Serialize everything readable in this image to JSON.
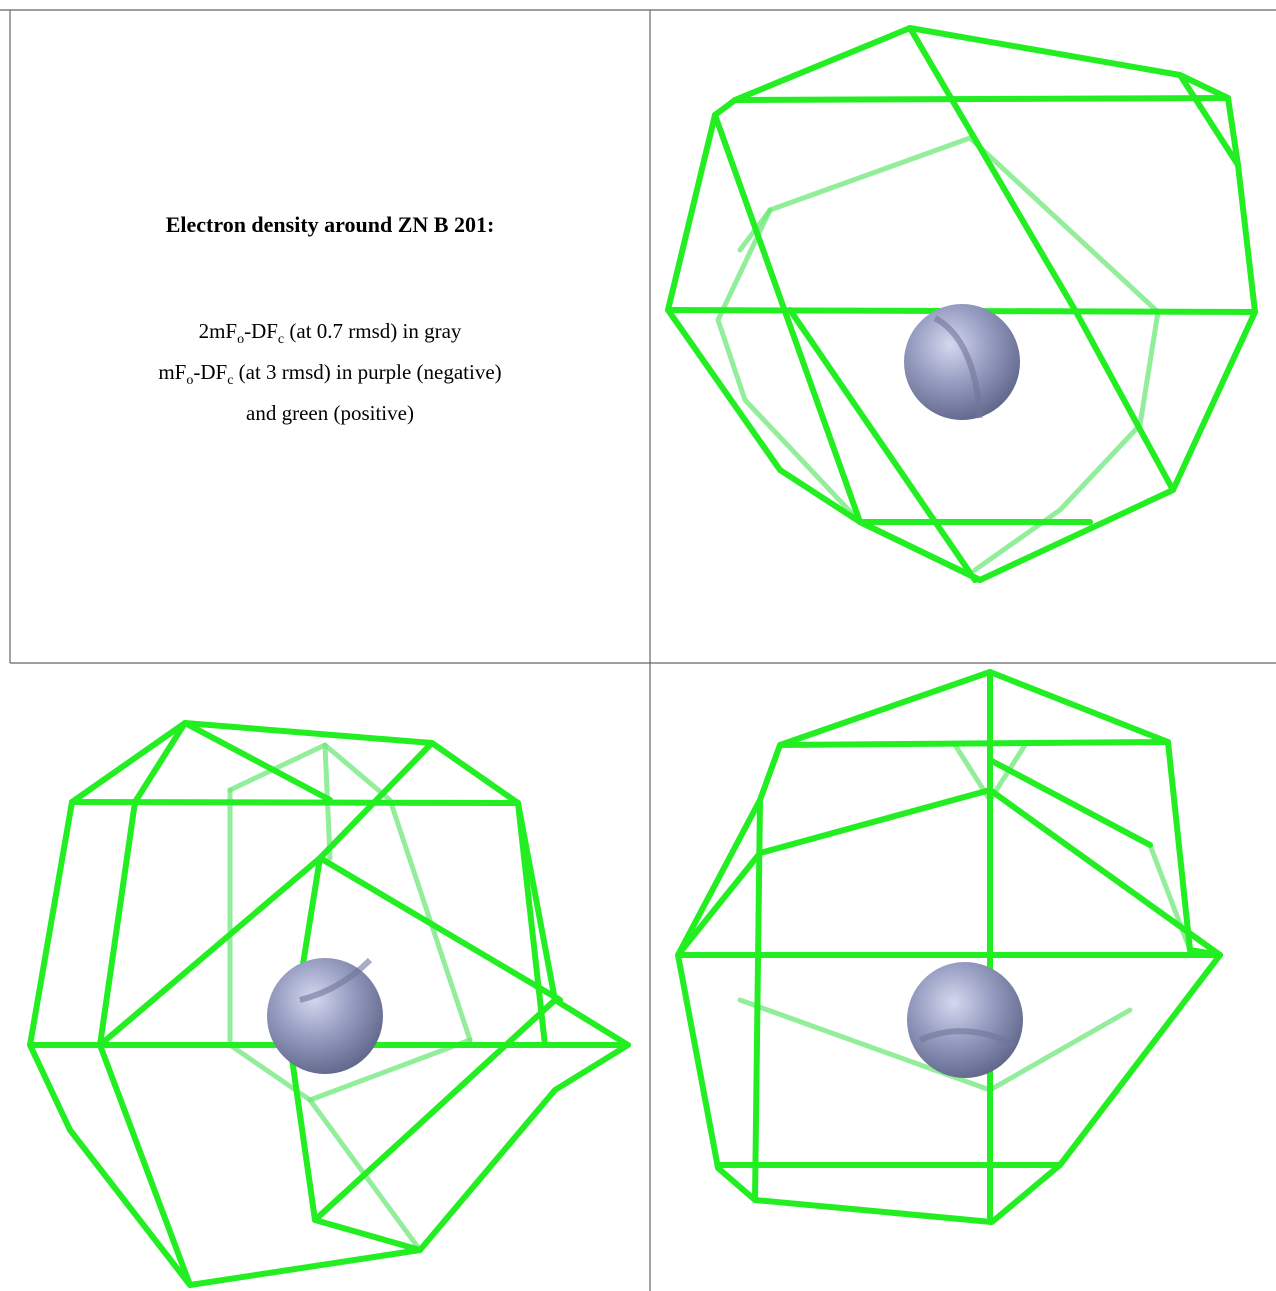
{
  "figure": {
    "title": "Electron density around ZN B 201:",
    "legend": [
      [
        {
          "text": "2mF"
        },
        {
          "sub": "o"
        },
        {
          "text": "-DF"
        },
        {
          "sub": "c"
        },
        {
          "text": " (at 0.7 rmsd) in gray"
        }
      ],
      [
        {
          "text": "mF"
        },
        {
          "sub": "o"
        },
        {
          "text": "-DF"
        },
        {
          "sub": "c"
        },
        {
          "text": " (at 3 rmsd) in purple (negative)"
        }
      ],
      [
        {
          "text": "and green (positive)"
        }
      ]
    ]
  }
}
